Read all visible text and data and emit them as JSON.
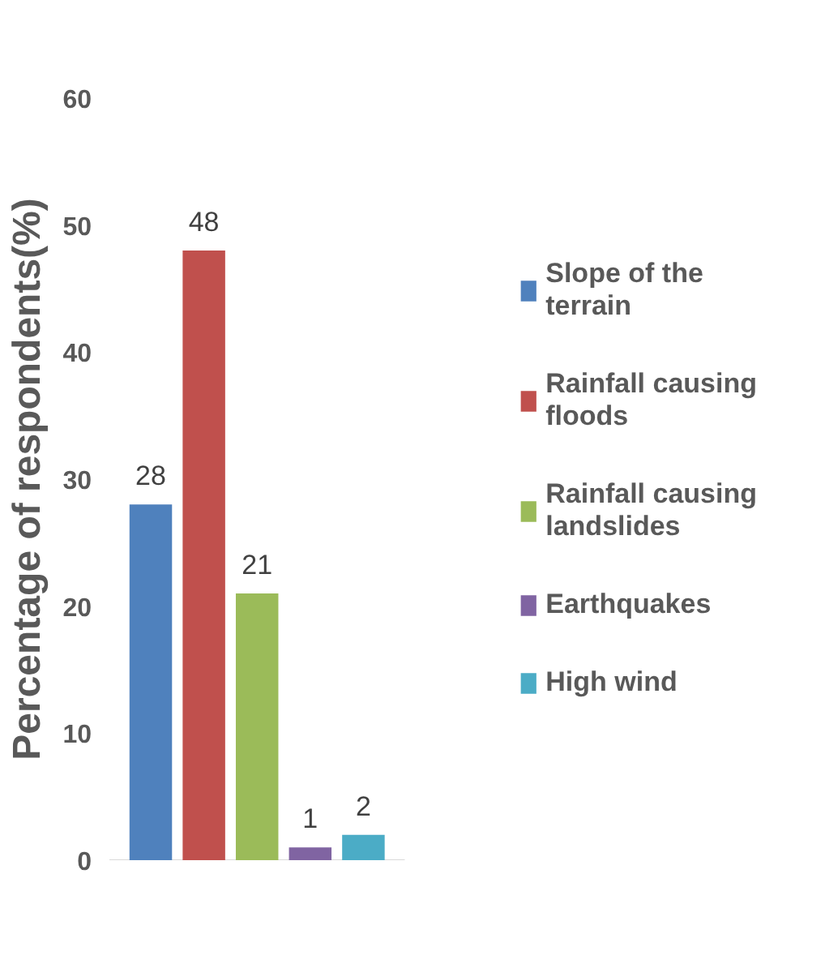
{
  "chart_data": {
    "type": "bar",
    "ylabel": "Percentage of respondents(%)",
    "categories": [
      null
    ],
    "series": [
      {
        "name": "Slope of the terrain",
        "color": "#4f81bd",
        "values": [
          28
        ]
      },
      {
        "name": "Rainfall causing floods",
        "color": "#c0504d",
        "values": [
          48
        ]
      },
      {
        "name": "Rainfall causing landslides",
        "color": "#9bbb59",
        "values": [
          21
        ]
      },
      {
        "name": "Earthquakes",
        "color": "#8064a2",
        "values": [
          1
        ]
      },
      {
        "name": "High wind",
        "color": "#4bacc6",
        "values": [
          2
        ]
      }
    ],
    "ylim": [
      0,
      60
    ],
    "yticks": [
      0,
      10,
      20,
      30,
      40,
      50,
      60
    ],
    "data_labels": true,
    "grid": false,
    "legend": "right"
  }
}
